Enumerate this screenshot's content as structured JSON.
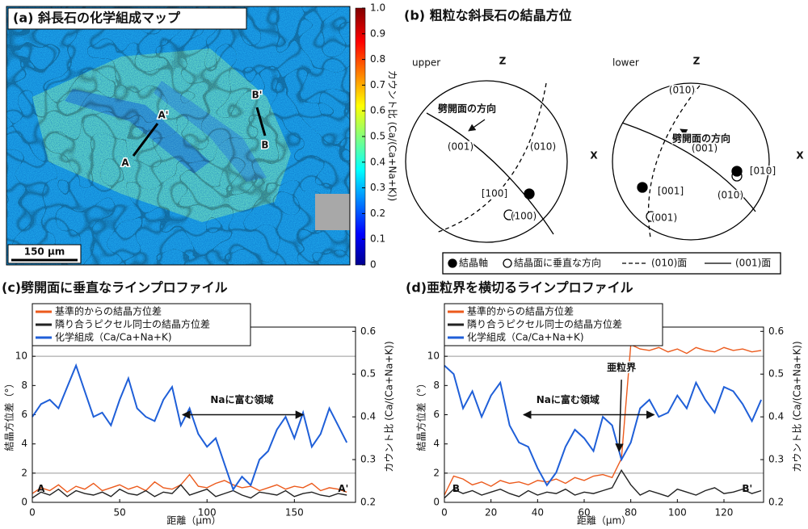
{
  "panel_a": {
    "title": "(a) 斜長石の化学組成マップ",
    "scale_bar": "150 μm",
    "points": [
      "A",
      "A'",
      "B",
      "B'"
    ],
    "colorbar": {
      "ticks": [
        0,
        0.1,
        0.2,
        0.3,
        0.4,
        0.5,
        0.6,
        0.7,
        0.8,
        0.9,
        {
          "value": 1,
          "label": "1.0"
        }
      ],
      "label": "カウント比 (Ca/(Ca+Na+K))"
    }
  },
  "panel_b": {
    "title": "(b) 粗粒な斜長石の結晶方位",
    "nets": [
      {
        "name": "upper",
        "axis_labels": [
          "Z",
          "X"
        ],
        "labels": [
          "劈開面の方向",
          "(001)",
          "(010)",
          "[100]",
          "(100)"
        ]
      },
      {
        "name": "lower",
        "axis_labels": [
          "Z",
          "X"
        ],
        "labels": [
          "(010)",
          "劈開面の方向",
          "(001)",
          "[010]",
          "(010)",
          "[001]",
          "(001)"
        ]
      }
    ],
    "legend": [
      "結晶軸",
      "結晶面に垂直な方向",
      "(010)面",
      "(001)面"
    ]
  },
  "chart_data": [
    {
      "type": "line",
      "title": "(c)劈開面に垂直なラインプロファイル",
      "x_label": "距離（μm）",
      "y_label": "結晶方位差（°）",
      "y2_label": "カウント比 (Ca/(Ca+Na+K))",
      "annotations": [
        "Naに富む領域",
        "A",
        "A'"
      ],
      "x": [
        0,
        5,
        10,
        15,
        20,
        25,
        30,
        35,
        40,
        45,
        50,
        55,
        60,
        65,
        70,
        75,
        80,
        85,
        90,
        95,
        100,
        105,
        110,
        115,
        120,
        125,
        130,
        135,
        140,
        145,
        150,
        155,
        160,
        165,
        170,
        175,
        180
      ],
      "xlim": [
        0,
        185
      ],
      "xticks": [
        0,
        50,
        100,
        150
      ],
      "ylim": [
        0,
        12
      ],
      "yticks": [
        0,
        2,
        4,
        6,
        8,
        10
      ],
      "y2lim": [
        0.2,
        0.61
      ],
      "y2ticks": [
        0.2,
        0.3,
        0.4,
        0.5,
        0.6
      ],
      "hlines": [
        2,
        10
      ],
      "series": [
        {
          "name": "基準的からの結晶方位差",
          "color": "#ec5a1c",
          "values": [
            0.6,
            1.0,
            0.8,
            1.2,
            0.7,
            1.1,
            0.9,
            1.3,
            0.8,
            1.0,
            1.2,
            0.9,
            1.1,
            0.8,
            1.4,
            1.0,
            0.9,
            1.2,
            1.9,
            1.1,
            1.0,
            1.3,
            1.5,
            1.2,
            1.0,
            1.1,
            0.8,
            1.0,
            1.2,
            0.9,
            1.1,
            1.0,
            1.3,
            0.8,
            1.0,
            0.9,
            0.7
          ]
        },
        {
          "name": "隣り合うピクセル同士の結晶方位差",
          "color": "#222222",
          "values": [
            0.3,
            0.7,
            0.5,
            0.9,
            0.4,
            0.8,
            0.6,
            0.5,
            0.7,
            0.4,
            0.9,
            0.6,
            0.5,
            0.8,
            0.4,
            0.7,
            0.6,
            1.2,
            0.5,
            0.7,
            0.9,
            0.4,
            0.6,
            0.8,
            0.5,
            0.3,
            0.7,
            0.6,
            0.5,
            0.8,
            0.4,
            0.6,
            0.7,
            0.5,
            0.4,
            0.6,
            0.5
          ]
        },
        {
          "name": "化学組成（Ca/Ca+Na+K)",
          "color": "#1f5fd8",
          "axis": "y2",
          "values": [
            0.4,
            0.43,
            0.44,
            0.42,
            0.47,
            0.52,
            0.46,
            0.4,
            0.41,
            0.38,
            0.44,
            0.49,
            0.42,
            0.4,
            0.39,
            0.44,
            0.47,
            0.38,
            0.42,
            0.36,
            0.33,
            0.35,
            0.29,
            0.23,
            0.26,
            0.24,
            0.3,
            0.32,
            0.37,
            0.4,
            0.35,
            0.41,
            0.33,
            0.36,
            0.42,
            0.38,
            0.34
          ]
        }
      ]
    },
    {
      "type": "line",
      "title": "(d)亜粒界を横切るラインプロファイル",
      "x_label": "距離（μm）",
      "y_label": "結晶方位差（°）",
      "y2_label": "カウント比 (Ca/(Ca+Na+K))",
      "annotations": [
        "Naに富む領域",
        "亜粒界",
        "B",
        "B'"
      ],
      "x": [
        0,
        4,
        8,
        12,
        16,
        20,
        24,
        28,
        32,
        36,
        40,
        44,
        48,
        52,
        56,
        60,
        64,
        68,
        72,
        76,
        80,
        84,
        88,
        92,
        96,
        100,
        104,
        108,
        112,
        116,
        120,
        124,
        128,
        132,
        136
      ],
      "xlim": [
        0,
        137
      ],
      "xticks": [
        0,
        20,
        40,
        60,
        80,
        100,
        120
      ],
      "ylim": [
        0,
        12
      ],
      "yticks": [
        0,
        2,
        4,
        6,
        8,
        10
      ],
      "y2lim": [
        0.2,
        0.61
      ],
      "y2ticks": [
        0.2,
        0.3,
        0.4,
        0.5,
        0.6
      ],
      "hlines": [
        2,
        10
      ],
      "series": [
        {
          "name": "基準的からの結晶方位差",
          "color": "#ec5a1c",
          "values": [
            0.5,
            1.8,
            1.6,
            1.2,
            1.4,
            1.1,
            1.5,
            1.3,
            1.4,
            1.2,
            1.5,
            1.4,
            1.6,
            1.3,
            1.7,
            1.5,
            1.8,
            1.9,
            1.7,
            3.0,
            10.8,
            10.5,
            10.4,
            10.6,
            10.3,
            10.5,
            10.2,
            10.6,
            10.4,
            10.3,
            10.6,
            10.4,
            10.5,
            10.3,
            10.4
          ]
        },
        {
          "name": "隣り合うピクセル同士の結晶方位差",
          "color": "#222222",
          "values": [
            0.3,
            0.9,
            0.6,
            0.8,
            0.5,
            0.7,
            0.9,
            0.6,
            0.4,
            0.8,
            0.5,
            0.7,
            0.6,
            0.9,
            0.5,
            0.7,
            0.6,
            0.8,
            1.0,
            2.2,
            1.2,
            0.5,
            0.8,
            0.6,
            0.4,
            0.9,
            0.7,
            0.5,
            0.8,
            1.0,
            0.6,
            0.7,
            0.9,
            0.6,
            0.8
          ]
        },
        {
          "name": "化学組成（Ca/Ca+Na+K)",
          "color": "#1f5fd8",
          "axis": "y2",
          "values": [
            0.52,
            0.5,
            0.42,
            0.46,
            0.4,
            0.45,
            0.48,
            0.38,
            0.34,
            0.33,
            0.28,
            0.24,
            0.27,
            0.33,
            0.37,
            0.35,
            0.32,
            0.4,
            0.38,
            0.3,
            0.34,
            0.42,
            0.44,
            0.4,
            0.41,
            0.45,
            0.42,
            0.48,
            0.44,
            0.41,
            0.47,
            0.46,
            0.43,
            0.39,
            0.44
          ]
        }
      ]
    }
  ]
}
